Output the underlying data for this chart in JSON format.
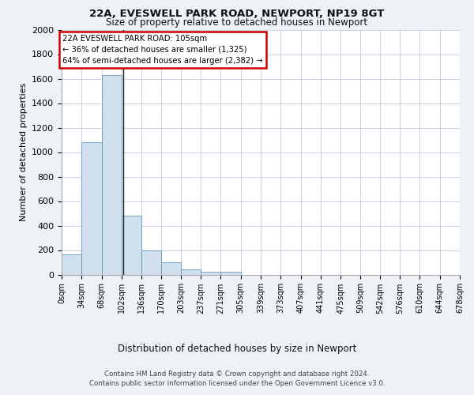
{
  "title1": "22A, EVESWELL PARK ROAD, NEWPORT, NP19 8GT",
  "title2": "Size of property relative to detached houses in Newport",
  "xlabel": "Distribution of detached houses by size in Newport",
  "ylabel": "Number of detached properties",
  "bar_color": "#d0e0ef",
  "bar_edge_color": "#6699bb",
  "annotation_box_color": "#cc0000",
  "annotation_text_line1": "22A EVESWELL PARK ROAD: 105sqm",
  "annotation_text_line2": "← 36% of detached houses are smaller (1,325)",
  "annotation_text_line3": "64% of semi-detached houses are larger (2,382) →",
  "property_line_x": 105,
  "bins": [
    0,
    34,
    68,
    102,
    136,
    170,
    203,
    237,
    271,
    305,
    339,
    373,
    407,
    441,
    475,
    509,
    542,
    576,
    610,
    644,
    678
  ],
  "bin_labels": [
    "0sqm",
    "34sqm",
    "68sqm",
    "102sqm",
    "136sqm",
    "170sqm",
    "203sqm",
    "237sqm",
    "271sqm",
    "305sqm",
    "339sqm",
    "373sqm",
    "407sqm",
    "441sqm",
    "475sqm",
    "509sqm",
    "542sqm",
    "576sqm",
    "610sqm",
    "644sqm",
    "678sqm"
  ],
  "bar_heights": [
    165,
    1080,
    1630,
    480,
    200,
    100,
    45,
    25,
    20,
    0,
    0,
    0,
    0,
    0,
    0,
    0,
    0,
    0,
    0,
    0
  ],
  "ylim": [
    0,
    2000
  ],
  "yticks": [
    0,
    200,
    400,
    600,
    800,
    1000,
    1200,
    1400,
    1600,
    1800,
    2000
  ],
  "footer1": "Contains HM Land Registry data © Crown copyright and database right 2024.",
  "footer2": "Contains public sector information licensed under the Open Government Licence v3.0.",
  "bg_color": "#eef2f7",
  "plot_bg_color": "#ffffff",
  "grid_color": "#bbbbdd"
}
